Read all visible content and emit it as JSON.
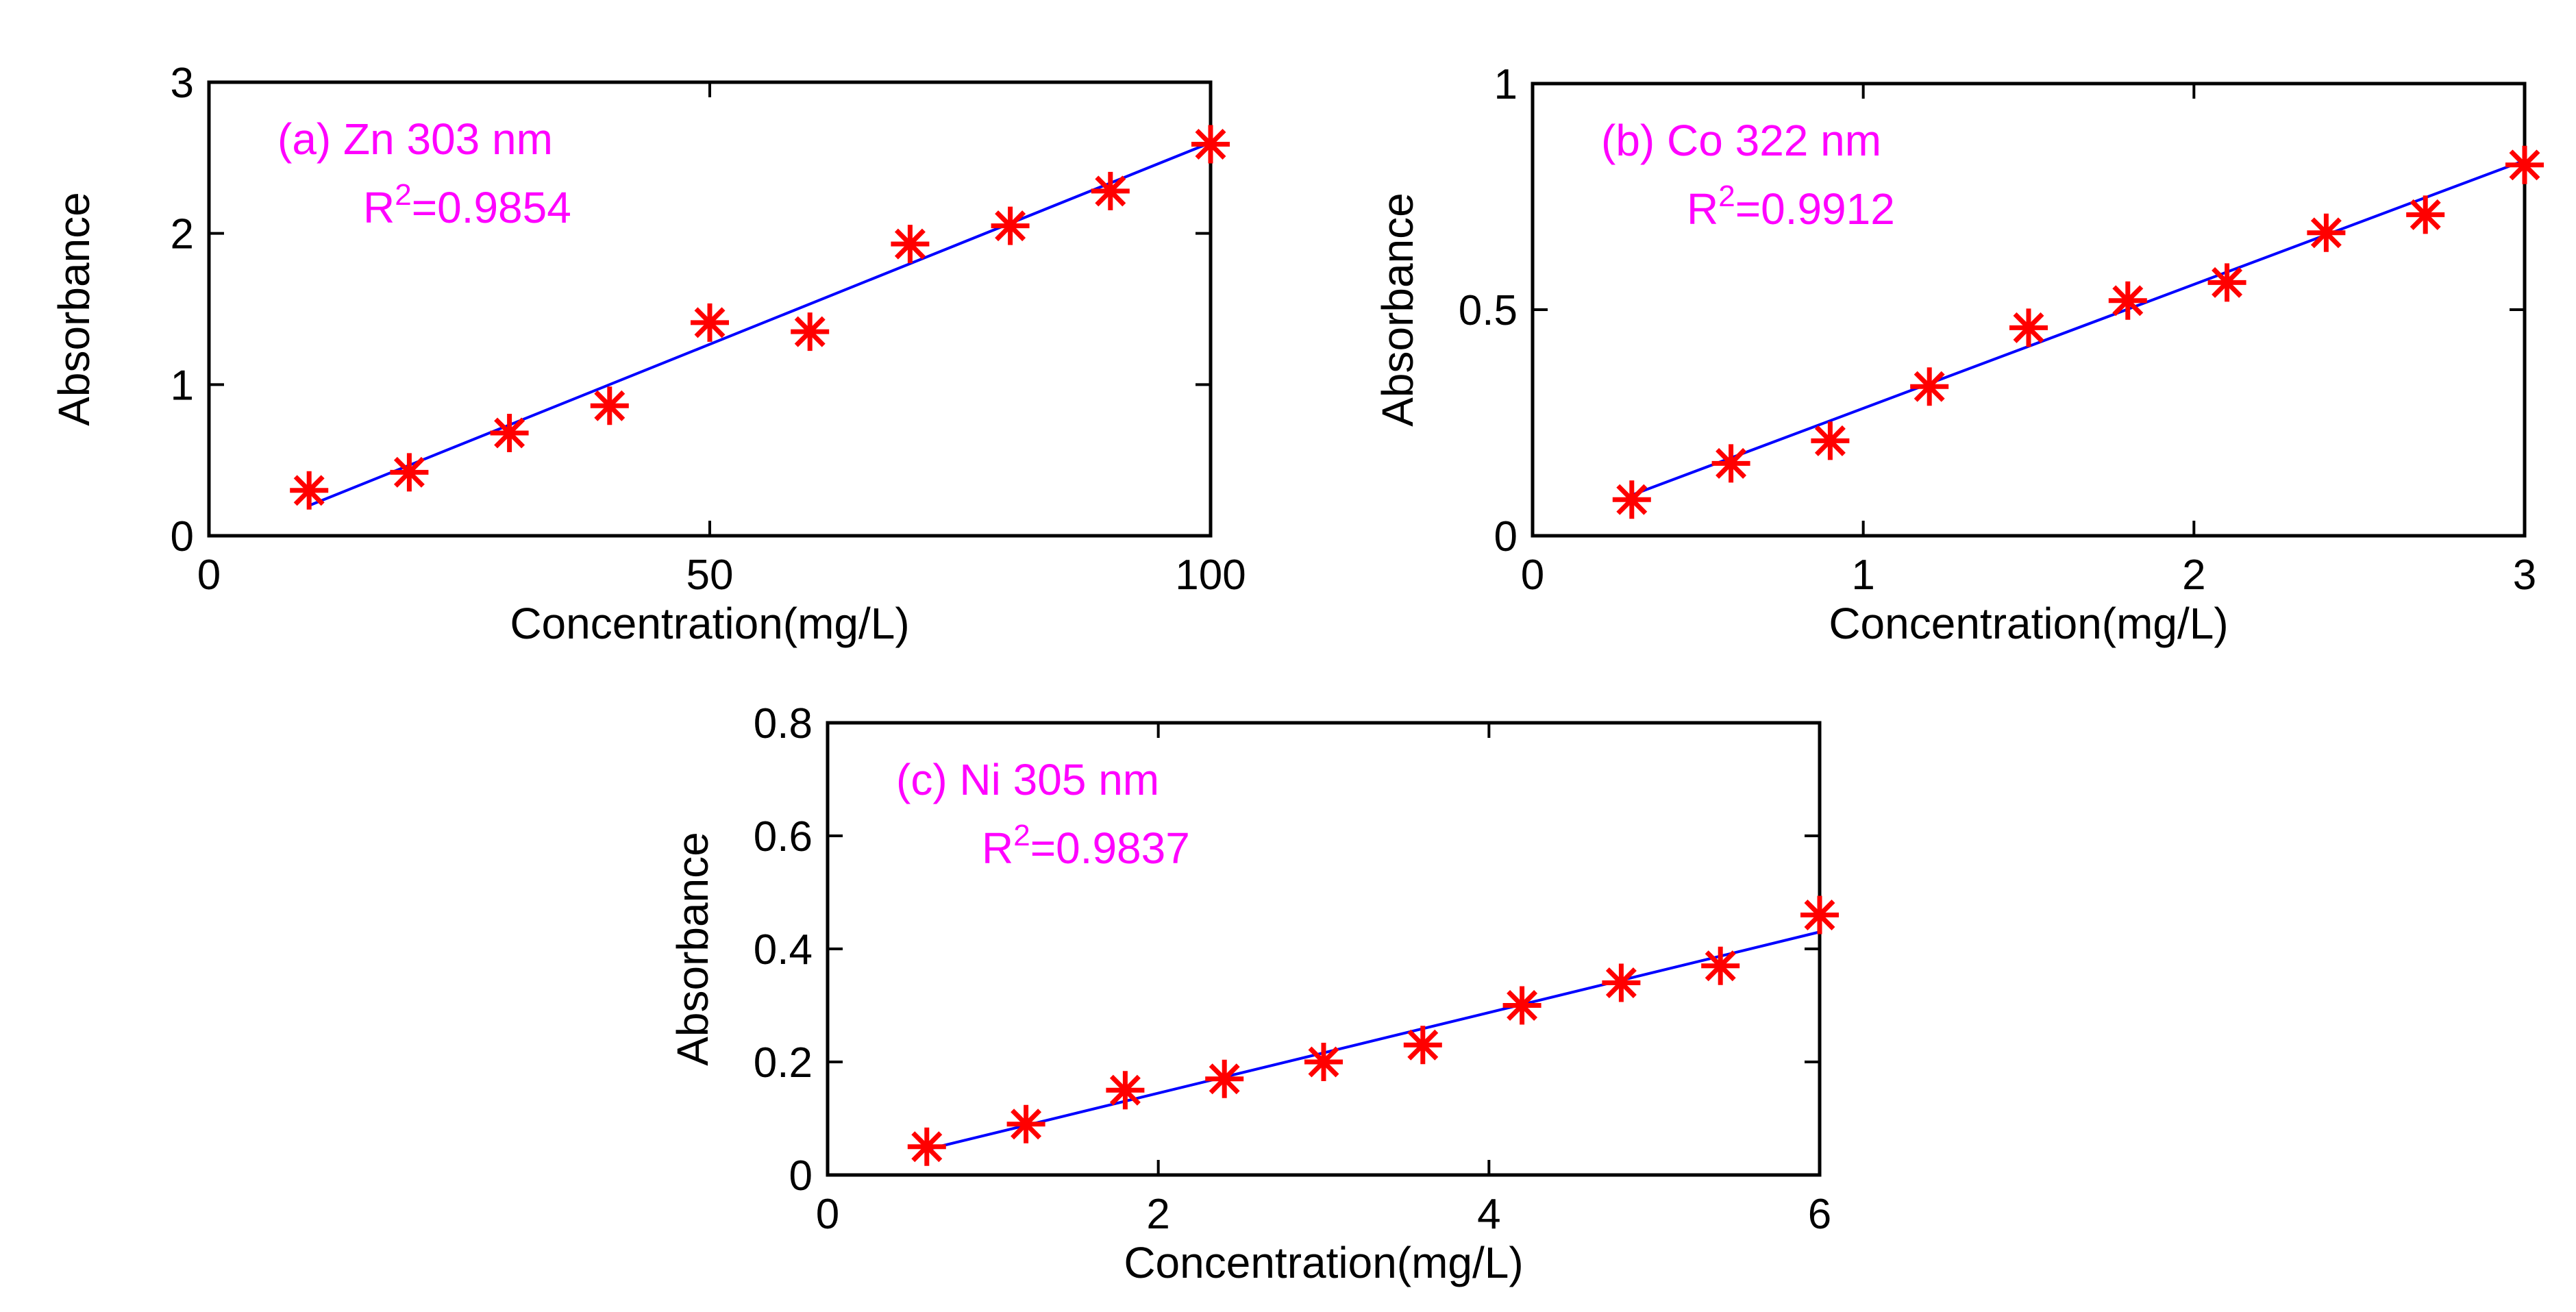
{
  "figure": {
    "colors": {
      "marker": "#ff0000",
      "fit_line": "#0000ff",
      "annotation": "#ff00ff",
      "axes": "#000000",
      "background": "#ffffff"
    }
  },
  "chart_data": [
    {
      "type": "scatter",
      "panel": "a",
      "title": "",
      "annotation": {
        "label": "(a) Zn 303 nm",
        "r2_prefix": "R",
        "r2_sup": "2",
        "r2_value": "=0.9854"
      },
      "xlabel": "Concentration(mg/L)",
      "ylabel": "Absorbance",
      "xlim": [
        0,
        100
      ],
      "ylim": [
        0,
        3
      ],
      "xticks": [
        0,
        50,
        100
      ],
      "xtick_labels": [
        "0",
        "50",
        "100"
      ],
      "yticks": [
        0,
        1,
        2,
        3
      ],
      "ytick_labels": [
        "0",
        "1",
        "2",
        "3"
      ],
      "grid": false,
      "series": [
        {
          "name": "measured",
          "marker": "asterisk",
          "x": [
            10,
            20,
            30,
            40,
            50,
            60,
            70,
            80,
            90,
            100
          ],
          "y": [
            0.3,
            0.42,
            0.68,
            0.86,
            1.41,
            1.35,
            1.93,
            2.05,
            2.28,
            2.59
          ]
        },
        {
          "name": "linear fit",
          "style": "line",
          "x": [
            10,
            100
          ],
          "y": [
            0.2,
            2.6
          ]
        }
      ]
    },
    {
      "type": "scatter",
      "panel": "b",
      "title": "",
      "annotation": {
        "label": "(b) Co 322 nm",
        "r2_prefix": "R",
        "r2_sup": "2",
        "r2_value": "=0.9912"
      },
      "xlabel": "Concentration(mg/L)",
      "ylabel": "Absorbance",
      "xlim": [
        0,
        3
      ],
      "ylim": [
        0,
        1
      ],
      "xticks": [
        0,
        1,
        2,
        3
      ],
      "xtick_labels": [
        "0",
        "1",
        "2",
        "3"
      ],
      "yticks": [
        0,
        0.5,
        1
      ],
      "ytick_labels": [
        "0",
        "0.5",
        "1"
      ],
      "grid": false,
      "series": [
        {
          "name": "measured",
          "marker": "asterisk",
          "x": [
            0.3,
            0.6,
            0.9,
            1.2,
            1.5,
            1.8,
            2.1,
            2.4,
            2.7,
            3.0
          ],
          "y": [
            0.08,
            0.16,
            0.21,
            0.33,
            0.46,
            0.52,
            0.56,
            0.67,
            0.71,
            0.82
          ]
        },
        {
          "name": "linear fit",
          "style": "line",
          "x": [
            0.3,
            3.0
          ],
          "y": [
            0.09,
            0.83
          ]
        }
      ]
    },
    {
      "type": "scatter",
      "panel": "c",
      "title": "",
      "annotation": {
        "label": "(c) Ni 305 nm",
        "r2_prefix": "R",
        "r2_sup": "2",
        "r2_value": "=0.9837"
      },
      "xlabel": "Concentration(mg/L)",
      "ylabel": "Absorbance",
      "xlim": [
        0,
        6
      ],
      "ylim": [
        0,
        0.8
      ],
      "xticks": [
        0,
        2,
        4,
        6
      ],
      "xtick_labels": [
        "0",
        "2",
        "4",
        "6"
      ],
      "yticks": [
        0,
        0.2,
        0.4,
        0.6,
        0.8
      ],
      "ytick_labels": [
        "0",
        "0.2",
        "0.4",
        "0.6",
        "0.8"
      ],
      "grid": false,
      "series": [
        {
          "name": "measured",
          "marker": "asterisk",
          "x": [
            0.6,
            1.2,
            1.8,
            2.4,
            3.0,
            3.6,
            4.2,
            4.8,
            5.4,
            6.0
          ],
          "y": [
            0.05,
            0.09,
            0.15,
            0.17,
            0.2,
            0.23,
            0.3,
            0.34,
            0.37,
            0.46
          ]
        },
        {
          "name": "linear fit",
          "style": "line",
          "x": [
            0.6,
            6.0
          ],
          "y": [
            0.045,
            0.43
          ]
        }
      ]
    }
  ]
}
